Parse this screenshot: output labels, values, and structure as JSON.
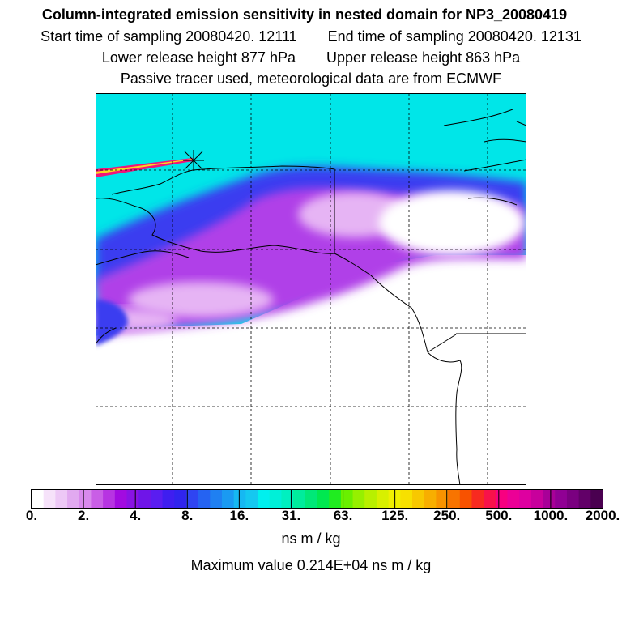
{
  "title": "Column-integrated emission sensitivity in nested domain for NP3_20080419",
  "sampling": {
    "start": "Start time of sampling 20080420. 12111",
    "end": "End time of sampling 20080420. 12131"
  },
  "release": {
    "lower": "Lower release height  877 hPa",
    "upper": "Upper release height  863 hPa"
  },
  "note": "Passive tracer used, meteorological data are from ECMWF",
  "colorbar": {
    "labels": [
      "0.",
      "2.",
      "4.",
      "8.",
      "16.",
      "31.",
      "63.",
      "125.",
      "250.",
      "500.",
      "1000.",
      "2000."
    ],
    "colors": [
      "#ffffff",
      "#f6e2fa",
      "#edc8f6",
      "#e1a9f0",
      "#d889ec",
      "#c95ee6",
      "#b734e2",
      "#a20be0",
      "#8a12e4",
      "#6f15e8",
      "#5a1df0",
      "#3f1ef0",
      "#3024ee",
      "#2f45f2",
      "#2563f2",
      "#1f80f2",
      "#1a9af2",
      "#16b8f2",
      "#15c8f0",
      "#00f0ee",
      "#00f0d8",
      "#00f0c0",
      "#00ec9c",
      "#00e878",
      "#00e850",
      "#20ec20",
      "#6af000",
      "#96f000",
      "#b8f000",
      "#d8f000",
      "#f0f000",
      "#f7e000",
      "#f8c800",
      "#f8ae00",
      "#f89300",
      "#f87400",
      "#f85200",
      "#f82a20",
      "#f8124a",
      "#f80080",
      "#ec0096",
      "#de00a0",
      "#c8009c",
      "#a80098",
      "#900094",
      "#7a0080",
      "#620068",
      "#4a0050"
    ]
  },
  "units": "ns m / kg",
  "maximum": "Maximum value  0.214E+04 ns m / kg",
  "map_colors": {
    "background": "#00e6e8",
    "land_fill": "#ffffff",
    "blue_band": "#3a3cf0",
    "purple": "#b040e8",
    "light_purple": "#e6b4f4",
    "plume_red": "#f0147a",
    "plume_yellow": "#f8d820",
    "coast": "#000000"
  }
}
